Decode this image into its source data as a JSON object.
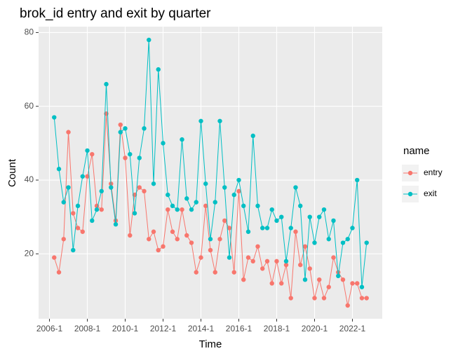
{
  "chart_data": {
    "type": "line",
    "title": "brok_id entry and exit by quarter",
    "x_label": "Time",
    "y_label": "Count",
    "legend_title": "name",
    "x": [
      2006.25,
      2006.5,
      2006.75,
      2007,
      2007.25,
      2007.5,
      2007.75,
      2008,
      2008.25,
      2008.5,
      2008.75,
      2009,
      2009.25,
      2009.5,
      2009.75,
      2010,
      2010.25,
      2010.5,
      2010.75,
      2011,
      2011.25,
      2011.5,
      2011.75,
      2012,
      2012.25,
      2012.5,
      2012.75,
      2013,
      2013.25,
      2013.5,
      2013.75,
      2014,
      2014.25,
      2014.5,
      2014.75,
      2015,
      2015.25,
      2015.5,
      2015.75,
      2016,
      2016.25,
      2016.5,
      2016.75,
      2017,
      2017.25,
      2017.5,
      2017.75,
      2018,
      2018.25,
      2018.5,
      2018.75,
      2019,
      2019.25,
      2019.5,
      2019.75,
      2020,
      2020.25,
      2020.5,
      2020.75,
      2021,
      2021.25,
      2021.5,
      2021.75,
      2022,
      2022.25,
      2022.5,
      2022.75
    ],
    "series": [
      {
        "name": "entry",
        "color": "#F8766D",
        "values": [
          19,
          15,
          24,
          53,
          31,
          27,
          26,
          41,
          47,
          33,
          32,
          58,
          39,
          29,
          55,
          46,
          25,
          36,
          38,
          37,
          24,
          26,
          21,
          22,
          32,
          26,
          24,
          32,
          25,
          23,
          15,
          19,
          33,
          21,
          15,
          24,
          29,
          27,
          15,
          37,
          13,
          19,
          18,
          22,
          16,
          18,
          12,
          18,
          12,
          17,
          8,
          26,
          17,
          22,
          16,
          8,
          13,
          8,
          11,
          19,
          15,
          13,
          6,
          12,
          12,
          8,
          8
        ]
      },
      {
        "name": "exit",
        "color": "#00BFC4",
        "values": [
          57,
          43,
          34,
          38,
          21,
          33,
          41,
          48,
          29,
          32,
          37,
          66,
          38,
          28,
          53,
          54,
          47,
          31,
          46,
          54,
          78,
          39,
          70,
          50,
          36,
          33,
          32,
          51,
          35,
          32,
          34,
          56,
          39,
          24,
          34,
          56,
          38,
          19,
          36,
          40,
          33,
          26,
          52,
          33,
          27,
          27,
          32,
          29,
          30,
          18,
          27,
          38,
          33,
          13,
          30,
          23,
          30,
          32,
          24,
          29,
          14,
          23,
          24,
          27,
          40,
          11,
          23
        ]
      }
    ],
    "xlim": [
      2005.425,
      2023.575
    ],
    "xticks": [
      {
        "value": 2006,
        "label": "2006-1"
      },
      {
        "value": 2008,
        "label": "2008-1"
      },
      {
        "value": 2010,
        "label": "2010-1"
      },
      {
        "value": 2012,
        "label": "2012-1"
      },
      {
        "value": 2014,
        "label": "2014-1"
      },
      {
        "value": 2016,
        "label": "2016-1"
      },
      {
        "value": 2018,
        "label": "2018-1"
      },
      {
        "value": 2020,
        "label": "2020-1"
      },
      {
        "value": 2022,
        "label": "2022-1"
      }
    ],
    "ylim": [
      2.4,
      81.6
    ],
    "yticks": [
      20,
      40,
      60,
      80
    ],
    "grid": true
  }
}
